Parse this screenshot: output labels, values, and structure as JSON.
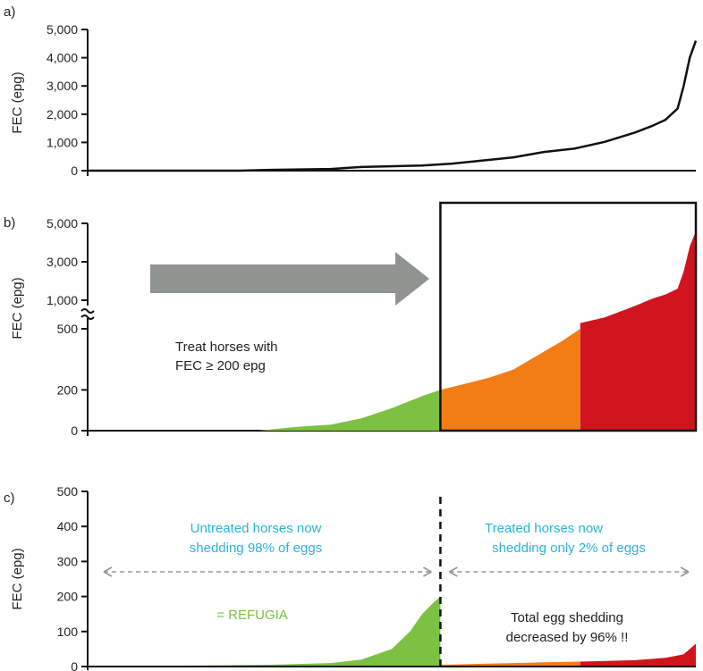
{
  "chart_data": [
    {
      "panel": "a)",
      "type": "line",
      "ylabel": "FEC (epg)",
      "ylim": [
        0,
        5000
      ],
      "yticks": [
        "0",
        "1,000",
        "2,000",
        "3,000",
        "4,000",
        "5,000"
      ],
      "ytick_values": [
        0,
        1000,
        2000,
        3000,
        4000,
        5000
      ],
      "xlim": [
        0,
        100
      ],
      "series": [
        {
          "color": "#111111",
          "x": [
            0,
            25,
            30,
            40,
            45,
            55,
            60,
            65,
            70,
            75,
            80,
            85,
            90,
            93,
            95,
            97,
            98,
            99,
            100
          ],
          "y": [
            0,
            0,
            30,
            60,
            130,
            180,
            250,
            360,
            470,
            660,
            780,
            1020,
            1350,
            1600,
            1800,
            2200,
            3000,
            4000,
            4600
          ]
        }
      ]
    },
    {
      "panel": "b)",
      "type": "area",
      "ylabel": "FEC (epg)",
      "yticks_upper": [
        "1,000",
        "3,000",
        "5,000"
      ],
      "ytick_values_upper": [
        1000,
        3000,
        5000
      ],
      "yticks_lower": [
        "0",
        "200",
        "500"
      ],
      "ytick_values_lower": [
        0,
        200,
        500
      ],
      "annotation": [
        "Treat horses with",
        "FEC ≥ 200 epg"
      ],
      "series": [
        {
          "color": "#7cc142",
          "x": [
            28,
            35,
            40,
            45,
            50,
            55,
            58
          ],
          "y": [
            0,
            20,
            30,
            60,
            110,
            170,
            200
          ]
        },
        {
          "color": "#f47c14",
          "x": [
            58,
            62,
            66,
            70,
            74,
            78,
            81
          ],
          "y": [
            200,
            230,
            260,
            300,
            370,
            440,
            500
          ]
        },
        {
          "color": "#d0151f",
          "x": [
            81,
            85,
            90,
            93,
            95,
            97,
            98,
            99,
            100
          ],
          "y": [
            600,
            700,
            900,
            1100,
            1300,
            1600,
            2500,
            3800,
            4600
          ]
        }
      ]
    },
    {
      "panel": "c)",
      "type": "area",
      "ylabel": "FEC (epg)",
      "ylim": [
        0,
        500
      ],
      "yticks": [
        "0",
        "100",
        "200",
        "300",
        "400",
        "500"
      ],
      "ytick_values": [
        0,
        100,
        200,
        300,
        400,
        500
      ],
      "left_text": [
        "Untreated horses now",
        "shedding 98% of eggs"
      ],
      "right_text": [
        "Treated horses now",
        "shedding only 2% of eggs"
      ],
      "refugia_text": "= REFUGIA",
      "summary_text": [
        "Total egg shedding",
        "decreased by 96% !!"
      ],
      "series": [
        {
          "color": "#7cc142",
          "x": [
            0,
            30,
            40,
            45,
            50,
            53,
            55,
            57,
            58
          ],
          "y": [
            0,
            5,
            10,
            20,
            50,
            100,
            150,
            185,
            200
          ]
        },
        {
          "color": "#f47c14",
          "x": [
            58,
            65,
            70,
            75,
            81
          ],
          "y": [
            5,
            8,
            10,
            12,
            14
          ]
        },
        {
          "color": "#d0151f",
          "x": [
            81,
            90,
            95,
            98,
            100
          ],
          "y": [
            14,
            18,
            25,
            35,
            65
          ]
        }
      ]
    }
  ]
}
